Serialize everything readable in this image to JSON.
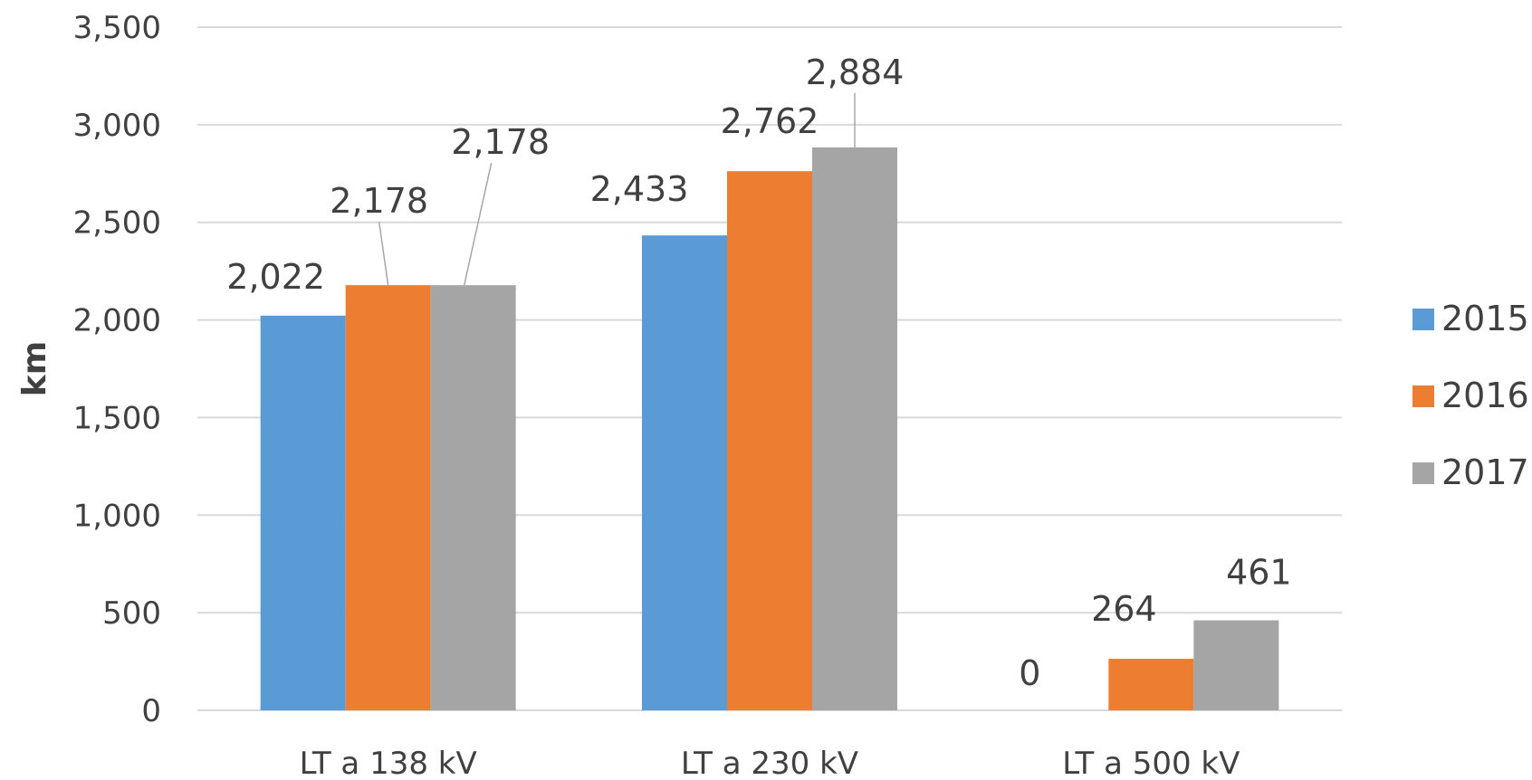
{
  "chart_data": {
    "type": "bar",
    "categories": [
      "LT a 138 kV",
      "LT a 230 kV",
      "LT a 500 kV"
    ],
    "series": [
      {
        "name": "2015",
        "color": "#5B9BD5",
        "values": [
          2022,
          2433,
          0
        ],
        "labels": [
          "2,022",
          "2,433",
          "0"
        ]
      },
      {
        "name": "2016",
        "color": "#ED7D31",
        "values": [
          2178,
          2762,
          264
        ],
        "labels": [
          "2,178",
          "2,762",
          "264"
        ]
      },
      {
        "name": "2017",
        "color": "#A5A5A5",
        "values": [
          2178,
          2884,
          461
        ],
        "labels": [
          "2,178",
          "2,884",
          "461"
        ]
      }
    ],
    "title": "",
    "xlabel": "",
    "ylabel": "km",
    "ylim": [
      0,
      3500
    ],
    "yticks": [
      0,
      500,
      1000,
      1500,
      2000,
      2500,
      3000,
      3500
    ],
    "ytick_labels": [
      "0",
      "500",
      "1,000",
      "1,500",
      "2,000",
      "2,500",
      "3,000",
      "3,500"
    ],
    "grid": true,
    "legend_position": "right"
  }
}
